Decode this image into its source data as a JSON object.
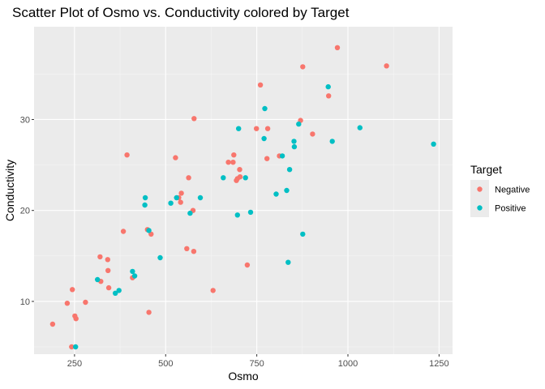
{
  "chart_data": {
    "type": "scatter",
    "title": "Scatter Plot of Osmo vs. Conductivity colored by Target",
    "xlabel": "Osmo",
    "ylabel": "Conductivity",
    "xlim": [
      139,
      1287
    ],
    "ylim": [
      4.2,
      40.2
    ],
    "xticks": [
      250,
      500,
      750,
      1000,
      1250
    ],
    "yticks": [
      10,
      20,
      30
    ],
    "grid": true,
    "legend": {
      "title": "Target",
      "position": "right"
    },
    "series": [
      {
        "name": "Negative",
        "color": "#F8766D",
        "points": [
          [
            190,
            7.5
          ],
          [
            230,
            9.8
          ],
          [
            242,
            5.0
          ],
          [
            244,
            11.3
          ],
          [
            251,
            8.4
          ],
          [
            254,
            8.1
          ],
          [
            280,
            9.9
          ],
          [
            320,
            14.9
          ],
          [
            322,
            12.2
          ],
          [
            341,
            14.6
          ],
          [
            342,
            13.4
          ],
          [
            344,
            11.5
          ],
          [
            384,
            17.7
          ],
          [
            394,
            26.1
          ],
          [
            409,
            12.6
          ],
          [
            450,
            17.9
          ],
          [
            454,
            8.8
          ],
          [
            460,
            17.4
          ],
          [
            527,
            25.8
          ],
          [
            536,
            21.4
          ],
          [
            541,
            20.9
          ],
          [
            543,
            21.9
          ],
          [
            558,
            15.8
          ],
          [
            563,
            23.6
          ],
          [
            575,
            20.0
          ],
          [
            577,
            15.5
          ],
          [
            578,
            30.1
          ],
          [
            630,
            11.2
          ],
          [
            672,
            25.3
          ],
          [
            685,
            25.3
          ],
          [
            687,
            26.1
          ],
          [
            694,
            23.3
          ],
          [
            697,
            23.5
          ],
          [
            703,
            24.5
          ],
          [
            704,
            23.7
          ],
          [
            724,
            14.0
          ],
          [
            749,
            29.0
          ],
          [
            760,
            33.8
          ],
          [
            778,
            25.7
          ],
          [
            780,
            29.0
          ],
          [
            812,
            26.0
          ],
          [
            870,
            29.9
          ],
          [
            876,
            35.8
          ],
          [
            903,
            28.4
          ],
          [
            947,
            32.6
          ],
          [
            971,
            37.9
          ],
          [
            1106,
            35.9
          ]
        ]
      },
      {
        "name": "Positive",
        "color": "#00BFC4",
        "points": [
          [
            253,
            5.0
          ],
          [
            313,
            12.4
          ],
          [
            362,
            10.9
          ],
          [
            372,
            11.2
          ],
          [
            409,
            13.3
          ],
          [
            415,
            12.8
          ],
          [
            443,
            20.6
          ],
          [
            444,
            21.4
          ],
          [
            454,
            17.8
          ],
          [
            485,
            14.8
          ],
          [
            514,
            20.8
          ],
          [
            530,
            21.4
          ],
          [
            567,
            19.7
          ],
          [
            595,
            21.4
          ],
          [
            658,
            23.6
          ],
          [
            697,
            19.5
          ],
          [
            700,
            29.0
          ],
          [
            719,
            23.6
          ],
          [
            733,
            19.8
          ],
          [
            770,
            27.9
          ],
          [
            772,
            31.2
          ],
          [
            803,
            21.8
          ],
          [
            820,
            26.0
          ],
          [
            832,
            22.2
          ],
          [
            836,
            14.3
          ],
          [
            840,
            24.5
          ],
          [
            852,
            27.6
          ],
          [
            853,
            27.0
          ],
          [
            865,
            29.5
          ],
          [
            876,
            17.4
          ],
          [
            946,
            33.6
          ],
          [
            957,
            27.6
          ],
          [
            1033,
            29.1
          ],
          [
            1235,
            27.3
          ]
        ]
      }
    ]
  }
}
